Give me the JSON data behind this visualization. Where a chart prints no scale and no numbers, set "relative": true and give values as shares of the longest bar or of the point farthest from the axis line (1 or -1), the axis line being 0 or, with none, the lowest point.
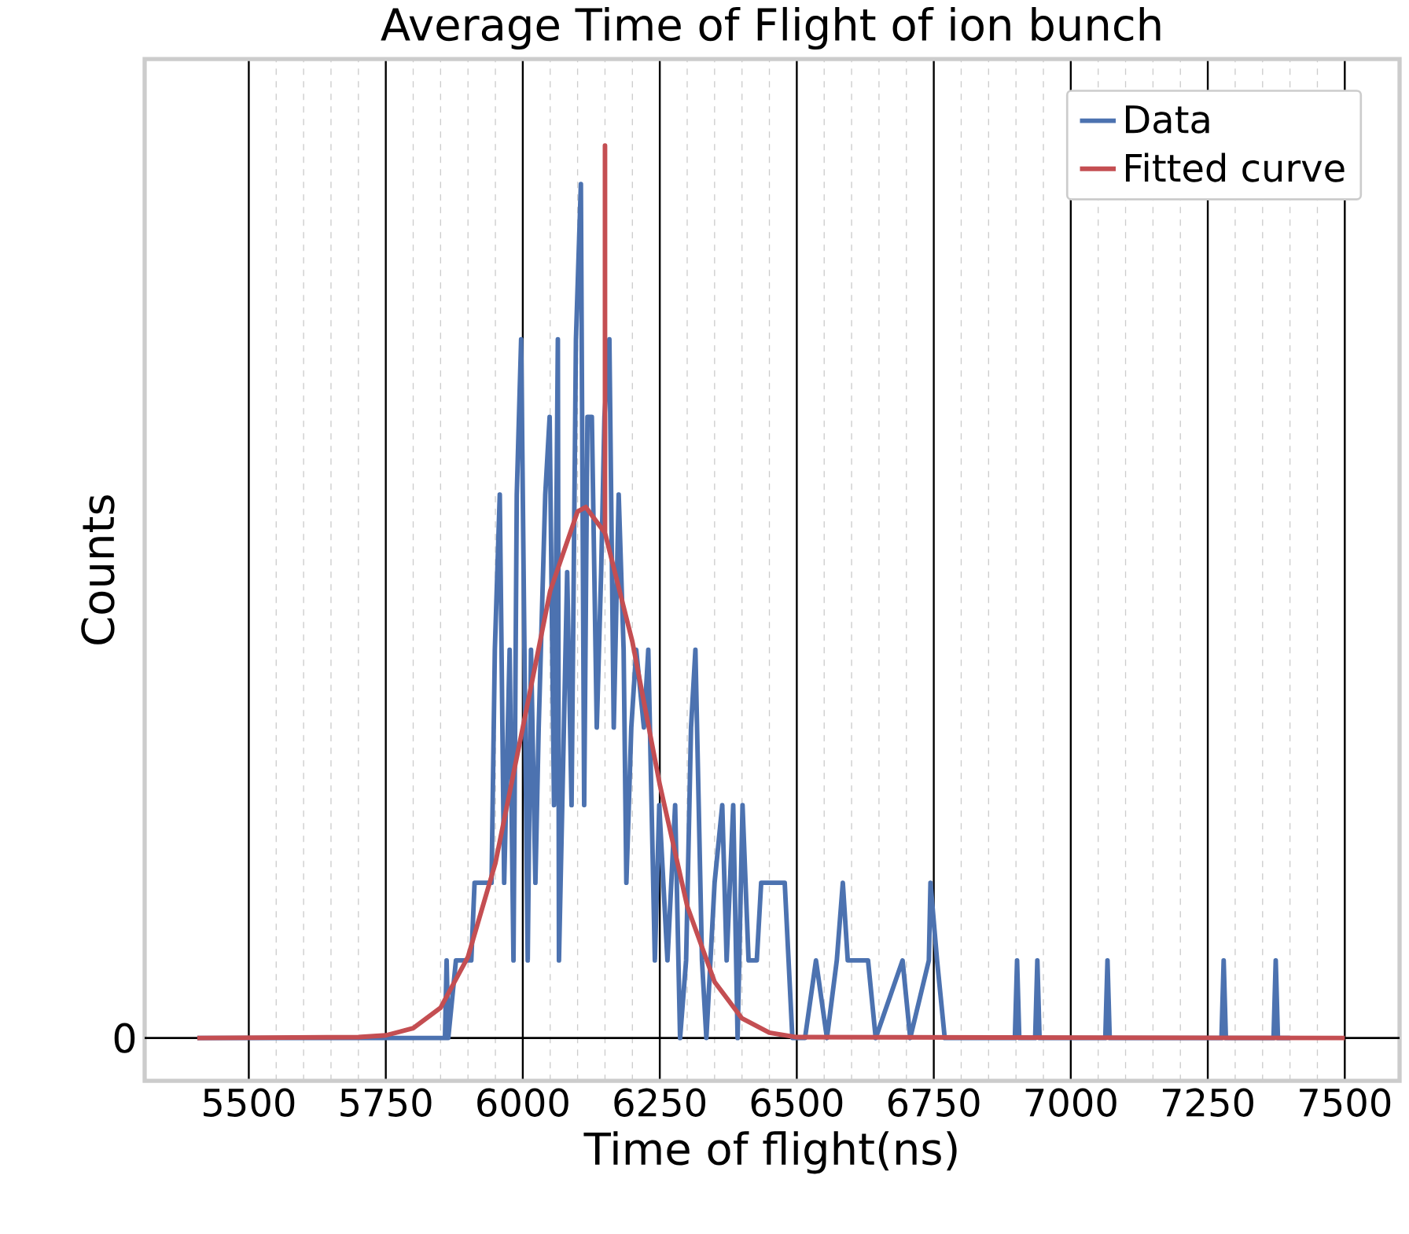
{
  "chart_data": {
    "type": "line",
    "title": "Average Time of Flight of ion bunch",
    "xlabel": "Time of flight(ns)",
    "ylabel": "Counts",
    "relative": true,
    "xlim": [
      5310,
      7600
    ],
    "xticks": [
      5500,
      5750,
      6000,
      6250,
      6500,
      6750,
      7000,
      7250,
      7500
    ],
    "annotations": [
      "0"
    ],
    "grid": "x",
    "legend": "top right",
    "marker": "none",
    "line_style": "solid",
    "series": [
      {
        "name": "Data",
        "color": "#4c72b0",
        "x": [
          5406,
          5858,
          5861,
          5864,
          5878,
          5906,
          5912,
          5943,
          5949,
          5958,
          5966,
          5976,
          5983,
          5989,
          5997,
          6009,
          6015,
          6023,
          6029,
          6041,
          6049,
          6057,
          6064,
          6066,
          6072,
          6081,
          6089,
          6097,
          6106,
          6112,
          6118,
          6126,
          6135,
          6143,
          6149,
          6158,
          6166,
          6175,
          6184,
          6189,
          6198,
          6207,
          6221,
          6229,
          6241,
          6249,
          6264,
          6278,
          6287,
          6298,
          6307,
          6315,
          6327,
          6335,
          6350,
          6364,
          6372,
          6384,
          6392,
          6401,
          6412,
          6427,
          6435,
          6444,
          6464,
          6478,
          6492,
          6515,
          6535,
          6555,
          6573,
          6584,
          6593,
          6607,
          6630,
          6644,
          6693,
          6707,
          6741,
          6744,
          6756,
          6770,
          6898,
          6902,
          6906,
          6935,
          6939,
          6943,
          7063,
          7067,
          7071,
          7275,
          7279,
          7283,
          7370,
          7374,
          7378,
          7400
        ],
        "values": [
          0,
          0,
          0.087,
          0,
          0.087,
          0.087,
          0.174,
          0.174,
          0.435,
          0.609,
          0.174,
          0.435,
          0.087,
          0.609,
          0.783,
          0.087,
          0.435,
          0.174,
          0.348,
          0.609,
          0.696,
          0.261,
          0.783,
          0.087,
          0.261,
          0.522,
          0.261,
          0.783,
          0.957,
          0.261,
          0.696,
          0.696,
          0.348,
          0.522,
          0.696,
          0.783,
          0.348,
          0.609,
          0.435,
          0.174,
          0.348,
          0.435,
          0.348,
          0.435,
          0.087,
          0.261,
          0.087,
          0.261,
          0,
          0.087,
          0.348,
          0.435,
          0.087,
          0,
          0.174,
          0.261,
          0.087,
          0.261,
          0,
          0.261,
          0.087,
          0.087,
          0.174,
          0.174,
          0.174,
          0.174,
          0,
          0,
          0.087,
          0,
          0.087,
          0.174,
          0.087,
          0.087,
          0.087,
          0,
          0.087,
          0,
          0.087,
          0.174,
          0.087,
          0,
          0,
          0.087,
          0,
          0,
          0.087,
          0,
          0,
          0.087,
          0,
          0,
          0.087,
          0,
          0,
          0.087,
          0,
          0
        ]
      },
      {
        "name": "Fitted curve",
        "color": "#c44e52",
        "x": [
          5406,
          5700,
          5750,
          5800,
          5850,
          5900,
          5950,
          6000,
          6050,
          6100,
          6115,
          6150,
          6150,
          6150,
          6200,
          6250,
          6300,
          6350,
          6400,
          6450,
          6500,
          7500
        ],
        "values": [
          0,
          0.001,
          0.003,
          0.011,
          0.034,
          0.091,
          0.196,
          0.348,
          0.501,
          0.59,
          0.595,
          0.566,
          1,
          0.566,
          0.444,
          0.284,
          0.148,
          0.063,
          0.022,
          0.006,
          0.001,
          0
        ]
      }
    ]
  }
}
